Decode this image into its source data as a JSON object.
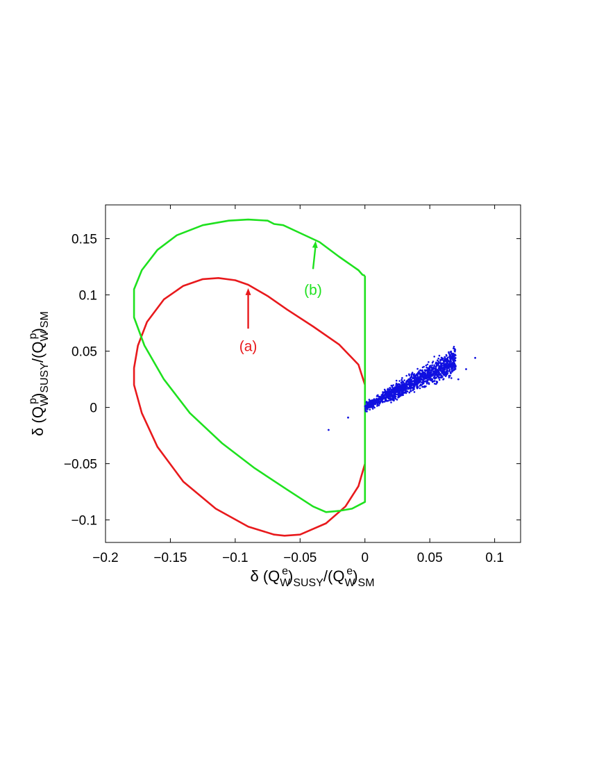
{
  "chart_data": {
    "type": "scatter",
    "xlabel": {
      "prefix": "δ (Q",
      "sub1": "W",
      "sup1": "e",
      "mid": ")",
      "sub2": "SUSY",
      "slash": "/(Q",
      "sub3": "W",
      "sup3": "e",
      "close": ")",
      "sub4": "SM"
    },
    "ylabel": {
      "prefix": "δ (Q",
      "sub1": "W",
      "sup1": "p",
      "mid": ")",
      "sub2": "SUSY",
      "slash": "/(Q",
      "sub3": "W",
      "sup3": "p",
      "close": ")",
      "sub4": "SM"
    },
    "xlim": [
      -0.2,
      0.12
    ],
    "ylim": [
      -0.12,
      0.18
    ],
    "x_ticks": [
      -0.2,
      -0.15,
      -0.1,
      -0.05,
      0,
      0.05,
      0.1
    ],
    "x_tick_labels": [
      "−0.2",
      "−0.15",
      "−0.1",
      "−0.05",
      "0",
      "0.05",
      "0.1"
    ],
    "y_ticks": [
      -0.1,
      -0.05,
      0,
      0.05,
      0.1,
      0.15
    ],
    "y_tick_labels": [
      "−0.1",
      "−0.05",
      "0",
      "0.05",
      "0.1",
      "0.15"
    ],
    "grid": false,
    "series": [
      {
        "kind": "curve",
        "color": "#e8191c",
        "points": [
          [
            0,
            0.02
          ],
          [
            -0.005,
            0.038
          ],
          [
            -0.02,
            0.056
          ],
          [
            -0.04,
            0.072
          ],
          [
            -0.06,
            0.087
          ],
          [
            -0.075,
            0.099
          ],
          [
            -0.09,
            0.109
          ],
          [
            -0.1,
            0.113
          ],
          [
            -0.113,
            0.115
          ],
          [
            -0.125,
            0.114
          ],
          [
            -0.14,
            0.108
          ],
          [
            -0.155,
            0.096
          ],
          [
            -0.168,
            0.076
          ],
          [
            -0.175,
            0.055
          ],
          [
            -0.178,
            0.035
          ],
          [
            -0.178,
            0.02
          ],
          [
            -0.172,
            -0.005
          ],
          [
            -0.16,
            -0.035
          ],
          [
            -0.14,
            -0.066
          ],
          [
            -0.115,
            -0.09
          ],
          [
            -0.09,
            -0.106
          ],
          [
            -0.07,
            -0.113
          ],
          [
            -0.062,
            -0.114
          ],
          [
            -0.05,
            -0.113
          ],
          [
            -0.03,
            -0.103
          ],
          [
            -0.015,
            -0.088
          ],
          [
            -0.005,
            -0.07
          ],
          [
            0,
            -0.05
          ]
        ]
      },
      {
        "kind": "curve",
        "color": "#1ee11e",
        "points": [
          [
            0,
            0.117
          ],
          [
            -0.002,
            0.118
          ],
          [
            -0.005,
            0.122
          ],
          [
            -0.02,
            0.134
          ],
          [
            -0.035,
            0.147
          ],
          [
            -0.05,
            0.155
          ],
          [
            -0.063,
            0.162
          ],
          [
            -0.07,
            0.163
          ],
          [
            -0.075,
            0.166
          ],
          [
            -0.09,
            0.167
          ],
          [
            -0.105,
            0.166
          ],
          [
            -0.125,
            0.162
          ],
          [
            -0.145,
            0.153
          ],
          [
            -0.16,
            0.14
          ],
          [
            -0.172,
            0.122
          ],
          [
            -0.178,
            0.105
          ],
          [
            -0.178,
            0.08
          ],
          [
            -0.17,
            0.055
          ],
          [
            -0.155,
            0.025
          ],
          [
            -0.135,
            -0.005
          ],
          [
            -0.11,
            -0.032
          ],
          [
            -0.085,
            -0.054
          ],
          [
            -0.06,
            -0.073
          ],
          [
            -0.04,
            -0.088
          ],
          [
            -0.03,
            -0.093
          ],
          [
            -0.02,
            -0.092
          ],
          [
            -0.01,
            -0.09
          ],
          [
            0,
            -0.084
          ],
          [
            0,
            0.117
          ]
        ]
      },
      {
        "kind": "scatter",
        "color": "#1010e0",
        "cluster": {
          "x_range": [
            0,
            0.07
          ],
          "slope": 0.6,
          "points": 1400
        },
        "outliers": [
          [
            -0.028,
            -0.02
          ],
          [
            -0.013,
            -0.009
          ],
          [
            0.085,
            0.044
          ],
          [
            0.072,
            0.025
          ],
          [
            0.078,
            0.034
          ]
        ]
      }
    ],
    "annotations": [
      {
        "label": "(a)",
        "color": "#e8191c",
        "text_at": [
          -0.09,
          0.055
        ],
        "arrow_from": [
          -0.09,
          0.07
        ],
        "arrow_to": [
          -0.09,
          0.106
        ]
      },
      {
        "label": "(b)",
        "color": "#1ee11e",
        "text_at": [
          -0.04,
          0.105
        ],
        "arrow_from": [
          -0.04,
          0.123
        ],
        "arrow_to": [
          -0.038,
          0.148
        ]
      }
    ]
  }
}
